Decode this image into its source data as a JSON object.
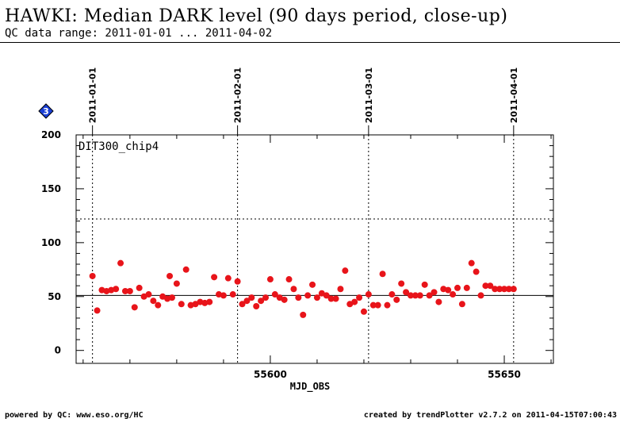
{
  "header": {
    "title": "HAWKI: Median DARK level (90 days period, close-up)",
    "subtitle": "QC data range: 2011-01-01 ... 2011-04-02"
  },
  "footer": {
    "left": "powered by QC: www.eso.org/HC",
    "right": "created by trendPlotter v2.7.2 on 2011-04-15T07:00:43"
  },
  "badge": {
    "label": "3",
    "color": "#1a3fd6",
    "icon": "diamond-badge-icon"
  },
  "chart_data": {
    "type": "scatter",
    "panel_label": "DIT300_chip4",
    "xlabel": "MJD_OBS",
    "xlim": [
      55558.5,
      55660.5
    ],
    "ylim": [
      -12,
      200
    ],
    "x_ticks": [
      55600,
      55650
    ],
    "y_ticks": [
      0,
      50,
      100,
      150,
      200
    ],
    "date_markers": [
      {
        "label": "2011-01-01",
        "mjd": 55562
      },
      {
        "label": "2011-02-01",
        "mjd": 55593
      },
      {
        "label": "2011-03-01",
        "mjd": 55621
      },
      {
        "label": "2011-04-01",
        "mjd": 55652
      }
    ],
    "reference_lines": {
      "solid": 51,
      "dotted_upper": 122
    },
    "marker_color": "#e8141a",
    "series": [
      {
        "x": [
          55562.0,
          55563.0,
          55564.0,
          55565.0,
          55566.0,
          55567.0,
          55568.0,
          55569.0,
          55570.0,
          55571.0,
          55572.0,
          55573.0,
          55574.0,
          55575.0,
          55576.0,
          55577.0,
          55578.0,
          55578.5,
          55579.0,
          55580.0,
          55581.0,
          55582.0,
          55583.0,
          55584.0,
          55585.0,
          55586.0,
          55587.0,
          55588.0,
          55589.0,
          55590.0,
          55591.0,
          55592.0,
          55593.0,
          55594.0,
          55595.0,
          55596.0,
          55597.0,
          55598.0,
          55599.0,
          55600.0,
          55601.0,
          55602.0,
          55603.0,
          55604.0,
          55605.0,
          55606.0,
          55607.0,
          55608.0,
          55609.0,
          55610.0,
          55611.0,
          55612.0,
          55613.0,
          55614.0,
          55615.0,
          55616.0,
          55617.0,
          55618.0,
          55619.0,
          55620.0,
          55621.0,
          55622.0,
          55623.0,
          55624.0,
          55625.0,
          55626.0,
          55627.0,
          55628.0,
          55629.0,
          55630.0,
          55631.0,
          55632.0,
          55633.0,
          55634.0,
          55635.0,
          55636.0,
          55637.0,
          55638.0,
          55639.0,
          55640.0,
          55641.0,
          55642.0,
          55643.0,
          55644.0,
          55645.0,
          55646.0,
          55647.0,
          55648.0,
          55649.0,
          55650.0,
          55651.0,
          55652.0
        ],
        "y": [
          69,
          37,
          56,
          55,
          56,
          57,
          81,
          55,
          55,
          40,
          58,
          50,
          52,
          46,
          42,
          50,
          48,
          69,
          49,
          62,
          43,
          75,
          42,
          43,
          45,
          44,
          45,
          68,
          52,
          51,
          67,
          52,
          64,
          43,
          46,
          49,
          41,
          46,
          49,
          66,
          52,
          49,
          47,
          66,
          57,
          49,
          33,
          51,
          61,
          49,
          53,
          51,
          48,
          48,
          57,
          74,
          43,
          45,
          49,
          36,
          52,
          42,
          42,
          71,
          42,
          52,
          47,
          62,
          54,
          51,
          51,
          51,
          61,
          51,
          54,
          45,
          57,
          56,
          52,
          58,
          43,
          58,
          81,
          73,
          51,
          60,
          60,
          57,
          57,
          57,
          57,
          57
        ]
      }
    ]
  }
}
